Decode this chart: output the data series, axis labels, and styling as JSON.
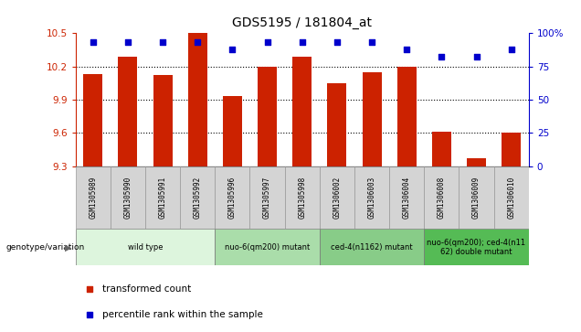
{
  "title": "GDS5195 / 181804_at",
  "samples": [
    "GSM1305989",
    "GSM1305990",
    "GSM1305991",
    "GSM1305992",
    "GSM1305996",
    "GSM1305997",
    "GSM1305998",
    "GSM1306002",
    "GSM1306003",
    "GSM1306004",
    "GSM1306008",
    "GSM1306009",
    "GSM1306010"
  ],
  "bar_values": [
    10.13,
    10.29,
    10.12,
    10.5,
    9.93,
    10.2,
    10.29,
    10.05,
    10.15,
    10.2,
    9.61,
    9.37,
    9.6
  ],
  "dot_values": [
    93,
    93,
    93,
    93,
    88,
    93,
    93,
    93,
    93,
    88,
    82,
    82,
    88
  ],
  "ylim_left": [
    9.3,
    10.5
  ],
  "ylim_right": [
    0,
    100
  ],
  "yticks_left": [
    9.3,
    9.6,
    9.9,
    10.2,
    10.5
  ],
  "yticks_right": [
    0,
    25,
    50,
    75,
    100
  ],
  "bar_color": "#cc2200",
  "dot_color": "#0000cc",
  "genotype_groups": [
    {
      "label": "wild type",
      "start": 0,
      "end": 4,
      "color": "#ddf5dd"
    },
    {
      "label": "nuo-6(qm200) mutant",
      "start": 4,
      "end": 7,
      "color": "#aaddaa"
    },
    {
      "label": "ced-4(n1162) mutant",
      "start": 7,
      "end": 10,
      "color": "#88cc88"
    },
    {
      "label": "nuo-6(qm200); ced-4(n11\n62) double mutant",
      "start": 10,
      "end": 13,
      "color": "#55bb55"
    }
  ],
  "legend_items": [
    {
      "label": "transformed count",
      "color": "#cc2200"
    },
    {
      "label": "percentile rank within the sample",
      "color": "#0000cc"
    }
  ]
}
